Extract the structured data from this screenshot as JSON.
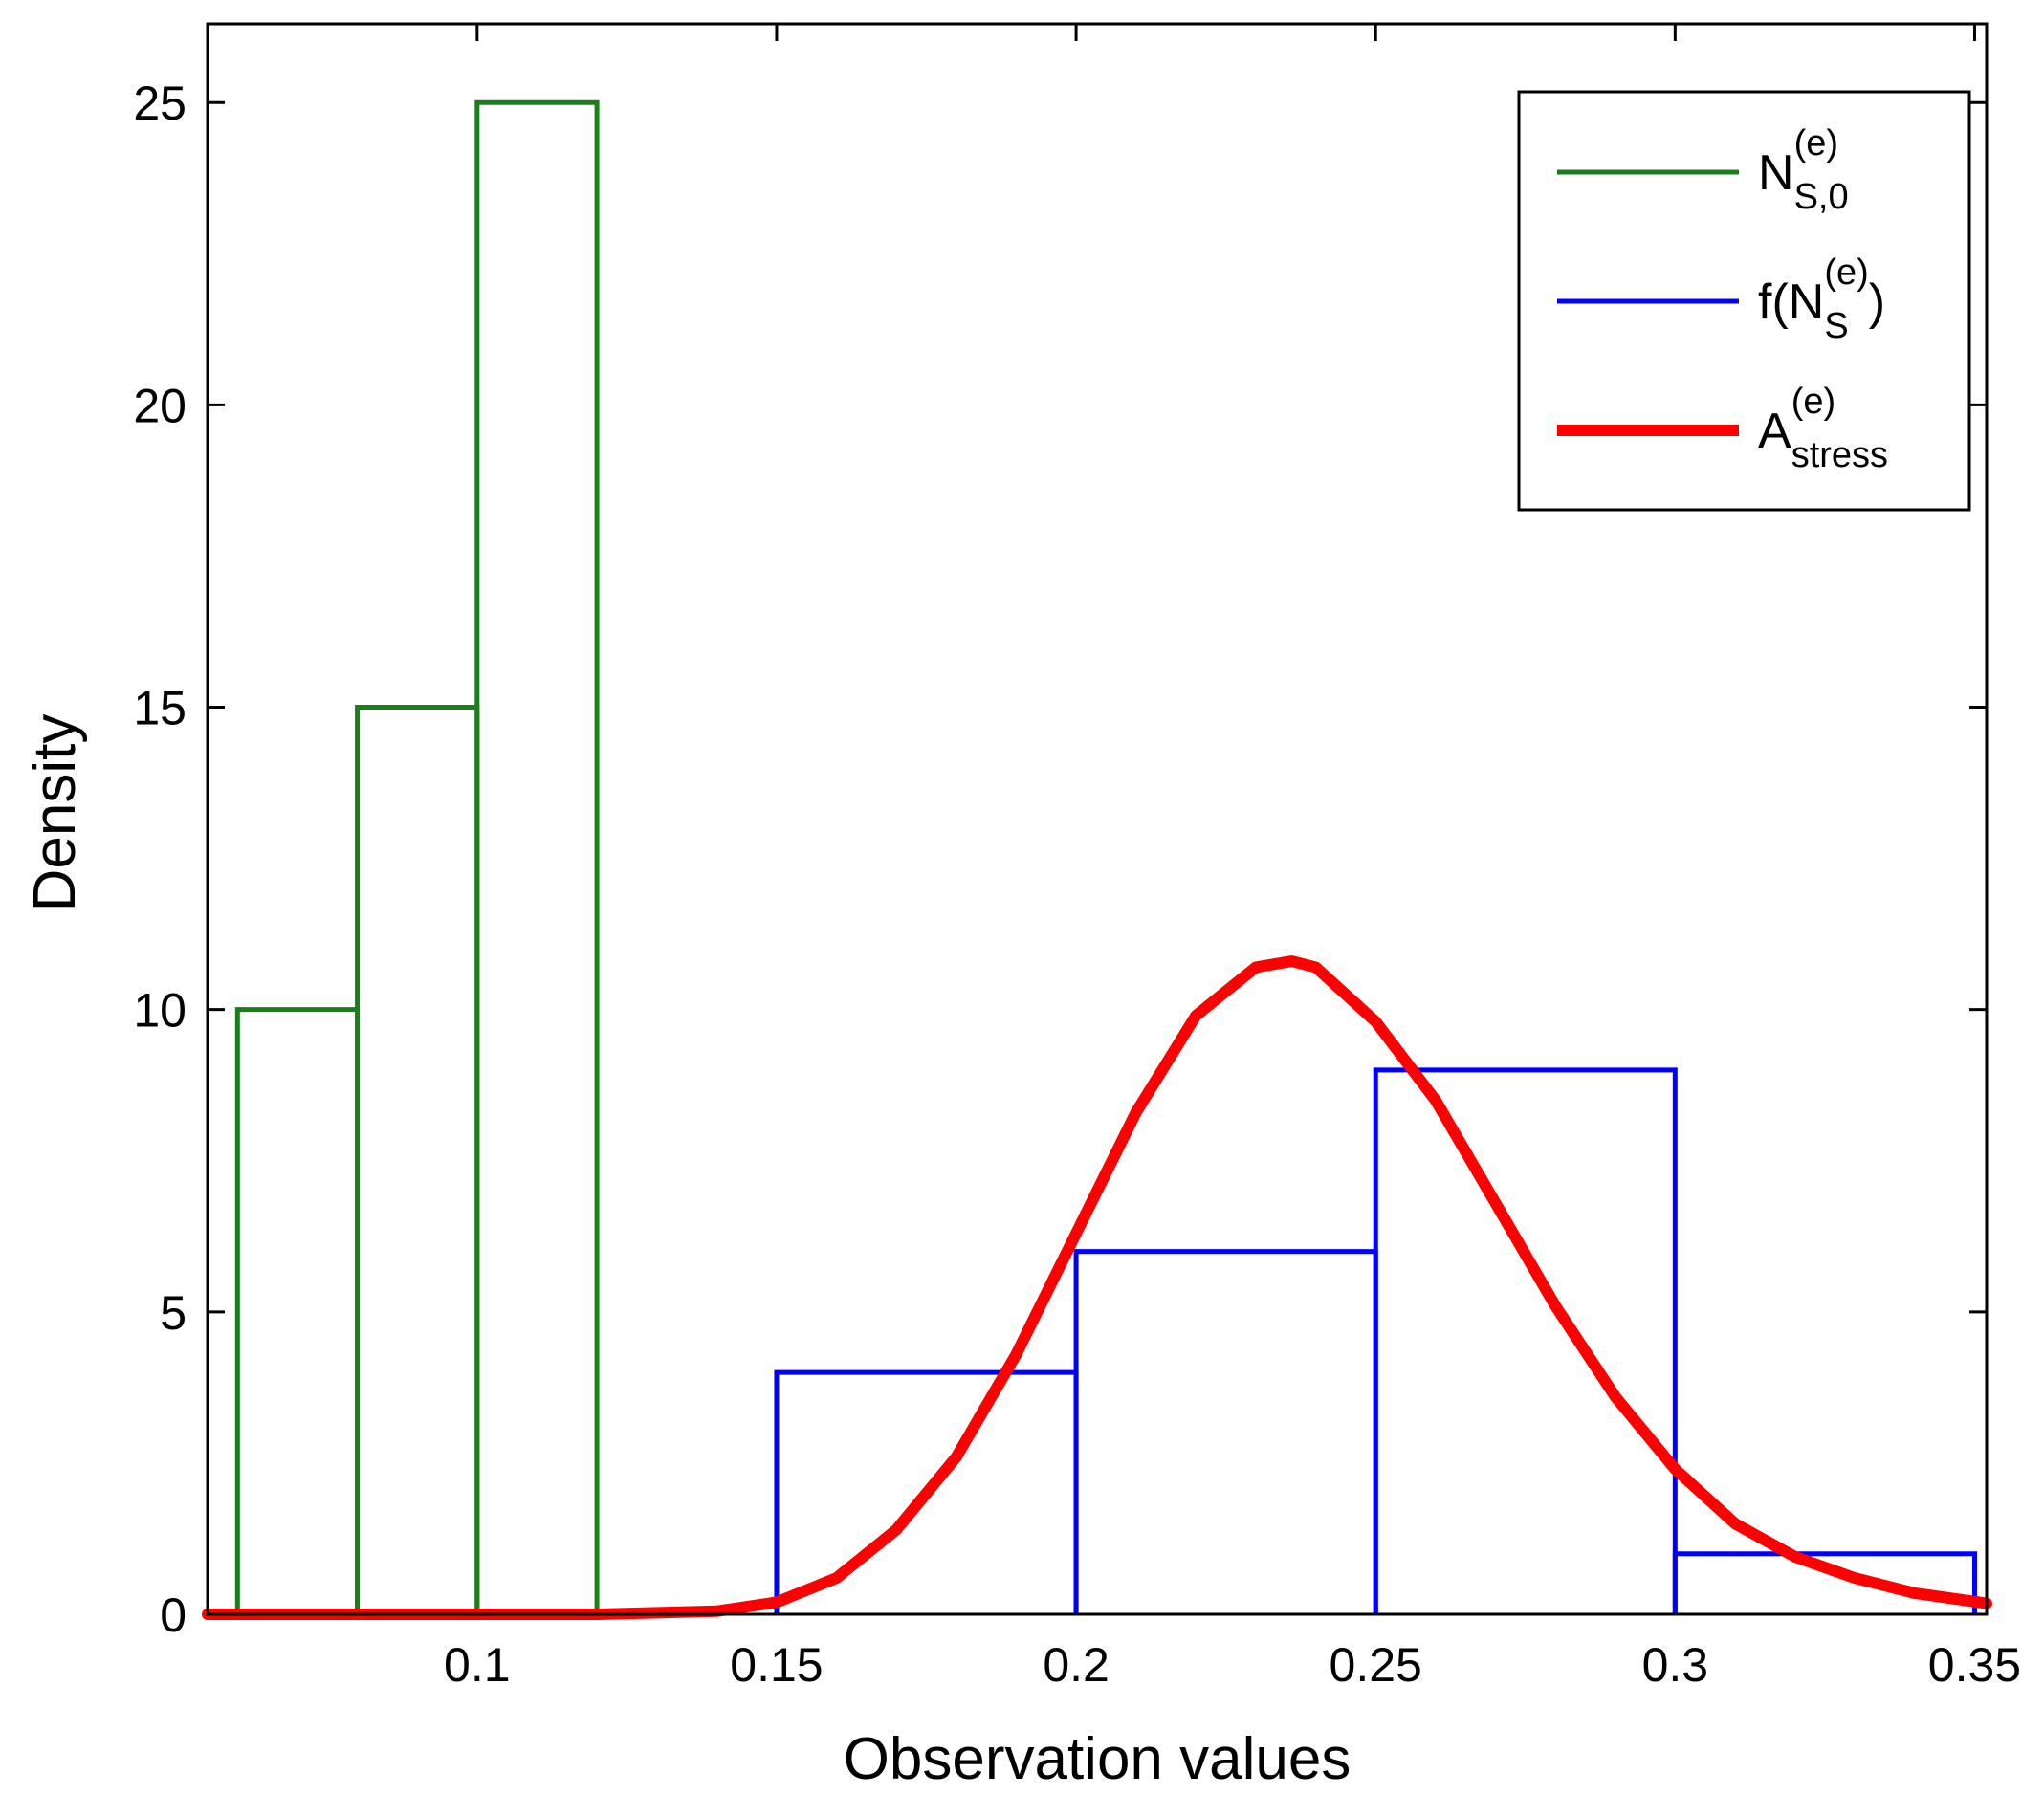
{
  "chart_data": {
    "type": "histogram",
    "title": "",
    "xlabel": "Observation values",
    "ylabel": "Density",
    "xlim": [
      0.055,
      0.352
    ],
    "ylim": [
      0,
      26.3
    ],
    "xticks": [
      0.1,
      0.15,
      0.2,
      0.25,
      0.3,
      0.35
    ],
    "xtick_labels": [
      "0.1",
      "0.15",
      "0.2",
      "0.25",
      "0.3",
      "0.35"
    ],
    "yticks": [
      0,
      5,
      10,
      15,
      20,
      25
    ],
    "ytick_labels": [
      "0",
      "5",
      "10",
      "15",
      "20",
      "25"
    ],
    "grid": false,
    "legend_position": "top-right",
    "series": [
      {
        "name": "N_{S,0}^{(e)}",
        "legend": {
          "base": "N",
          "sup": "(e)",
          "sub": "S,0",
          "prefix": "",
          "suffix": ""
        },
        "kind": "step-histogram",
        "color": "#1a7f1a",
        "bin_edges": [
          0.06,
          0.08,
          0.1,
          0.12
        ],
        "values": [
          10,
          15,
          25
        ]
      },
      {
        "name": "f(N_S^{(e)})",
        "legend": {
          "base": "N",
          "sup": "(e)",
          "sub": "S",
          "prefix": "f(",
          "suffix": ")"
        },
        "kind": "step-histogram",
        "color": "#0000ff",
        "bin_edges": [
          0.15,
          0.2,
          0.25,
          0.3,
          0.35
        ],
        "values": [
          4,
          6,
          9,
          1
        ]
      },
      {
        "name": "A_{stress}^{(e)}",
        "legend": {
          "base": "A",
          "sup": "(e)",
          "sub": "stress",
          "prefix": "",
          "suffix": ""
        },
        "kind": "curve",
        "color": "#ff0000",
        "x": [
          0.055,
          0.12,
          0.14,
          0.15,
          0.16,
          0.17,
          0.18,
          0.19,
          0.2,
          0.21,
          0.22,
          0.23,
          0.236,
          0.24,
          0.25,
          0.26,
          0.27,
          0.28,
          0.29,
          0.3,
          0.31,
          0.32,
          0.33,
          0.34,
          0.352
        ],
        "values": [
          0,
          0,
          0.05,
          0.2,
          0.6,
          1.4,
          2.6,
          4.3,
          6.3,
          8.3,
          9.9,
          10.7,
          10.8,
          10.7,
          9.8,
          8.5,
          6.8,
          5.1,
          3.6,
          2.4,
          1.5,
          0.95,
          0.6,
          0.35,
          0.18
        ]
      }
    ]
  }
}
